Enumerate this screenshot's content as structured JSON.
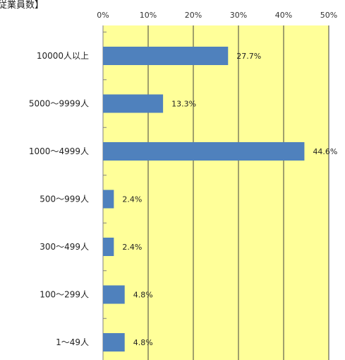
{
  "chart_data": {
    "type": "bar",
    "orientation": "horizontal",
    "title": "従業員数】",
    "categories": [
      "10000人以上",
      "5000～9999人",
      "1000～4999人",
      "500～999人",
      "300～499人",
      "100～299人",
      "1～49人"
    ],
    "values": [
      27.7,
      13.3,
      44.6,
      2.4,
      2.4,
      4.8,
      4.8
    ],
    "value_labels": [
      "27.7%",
      "13.3%",
      "44.6%",
      "2.4%",
      "2.4%",
      "4.8%",
      "4.8%"
    ],
    "x_ticks": [
      "0%",
      "10%",
      "20%",
      "30%",
      "40%",
      "50%"
    ],
    "xlim": [
      0,
      50
    ],
    "xaxis_position": "top",
    "grid": true,
    "colors": {
      "bar": "#4f81bd",
      "plot_bg": "#ffff99",
      "grid": "#404040"
    }
  }
}
